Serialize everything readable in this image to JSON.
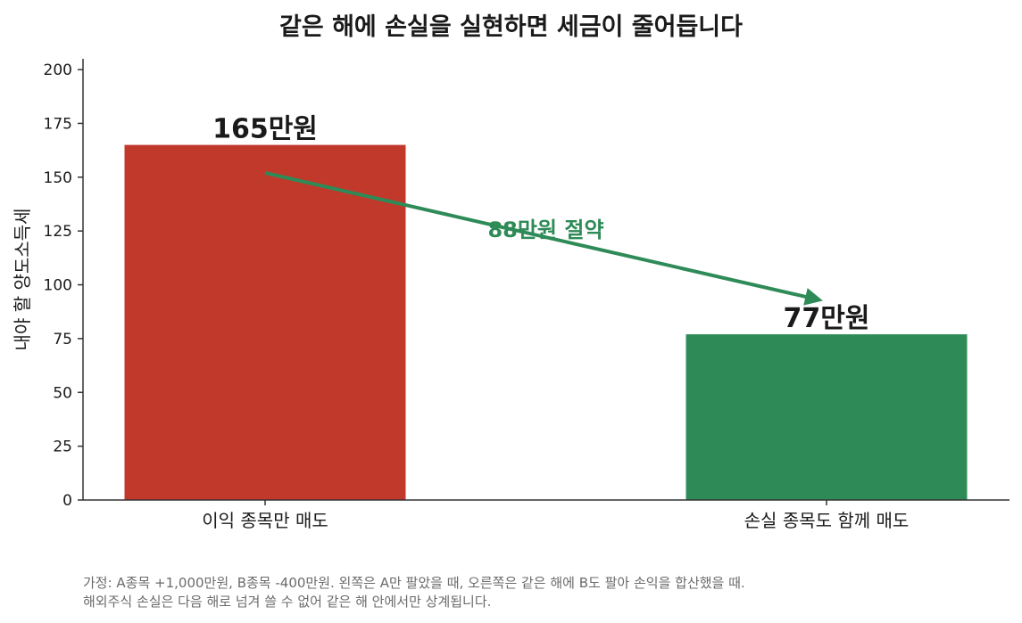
{
  "chart_data": {
    "type": "bar",
    "title": "같은 해에 손실을 실현하면 세금이 줄어듭니다",
    "categories": [
      "이익 종목만 매도",
      "손실 종목도 함께 매도"
    ],
    "values": [
      165,
      77
    ],
    "value_labels": [
      "165만원",
      "77만원"
    ],
    "bar_colors": [
      "#c0392b",
      "#2e8b57"
    ],
    "ylabel": "내야 할 양도소득세",
    "ylim": [
      0,
      205
    ],
    "yticks": [
      0,
      25,
      50,
      75,
      100,
      125,
      150,
      175,
      200
    ],
    "grid": false,
    "arrow": {
      "from": [
        0,
        152
      ],
      "to": [
        1,
        93
      ],
      "label": "88만원 절약",
      "label_y": 125,
      "color": "#2e8b57"
    }
  },
  "notes": [
    "가정: A종목 +1,000만원, B종목 -400만원. 왼쪽은 A만 팔았을 때, 오른쪽은 같은 해에 B도 팔아 손익을 합산했을 때.",
    "해외주식 손실은 다음 해로 넘겨 쓸 수 없어 같은 해 안에서만 상계됩니다."
  ]
}
